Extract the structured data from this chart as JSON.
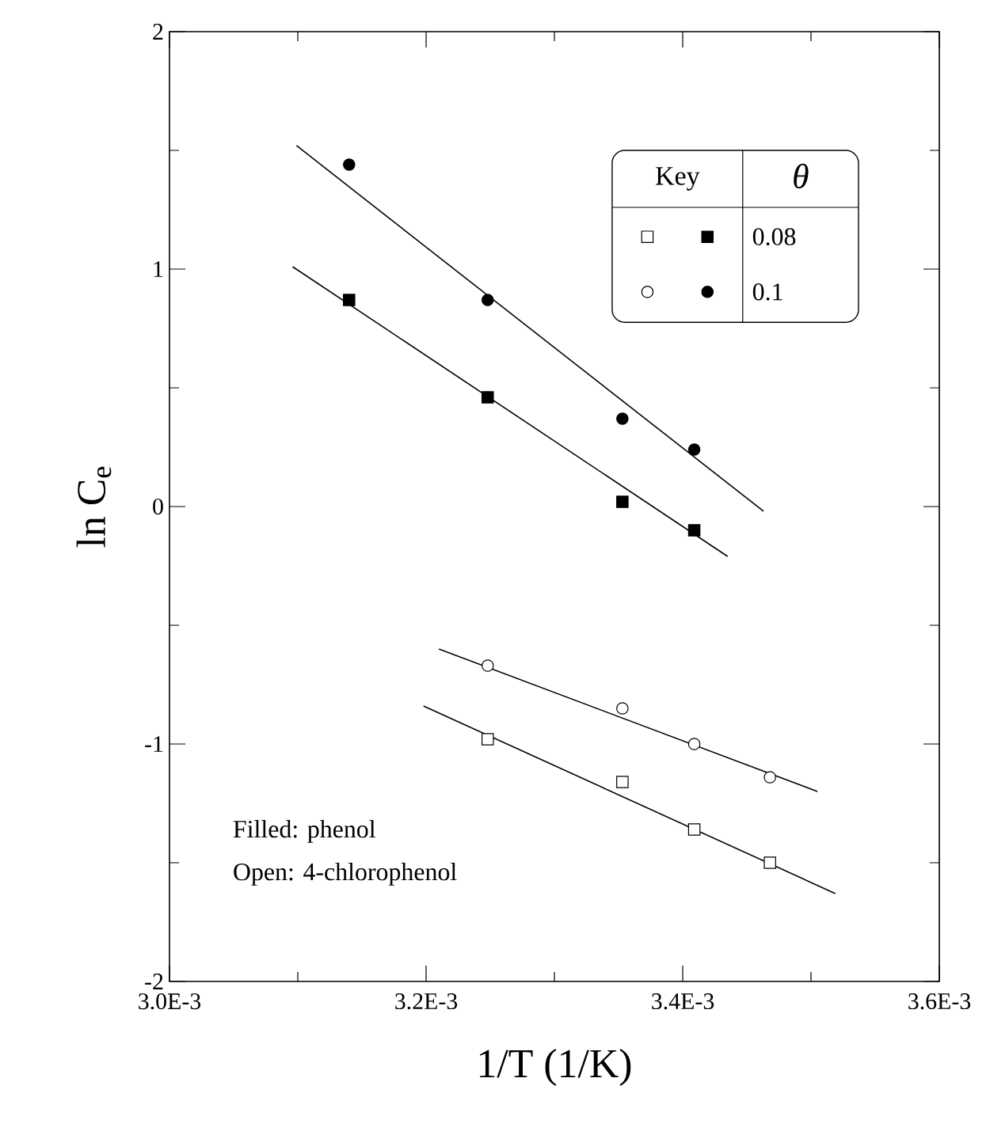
{
  "chart_data": {
    "type": "scatter",
    "xlabel": "1/T (1/K)",
    "ylabel": "ln C$_{e}$",
    "legend_title": "Key",
    "legend": "top right",
    "xlim": [
      0.003,
      0.0036
    ],
    "ylim": [
      -2,
      2
    ],
    "xticks": [
      {
        "value": 0.003,
        "label": "3.0E-3"
      },
      {
        "value": 0.0031,
        "label": null
      },
      {
        "value": 0.0032,
        "label": "3.2E-3"
      },
      {
        "value": 0.0033,
        "label": null
      },
      {
        "value": 0.0034,
        "label": "3.4E-3"
      },
      {
        "value": 0.0035,
        "label": null
      },
      {
        "value": 0.0036,
        "label": "3.6E-3"
      }
    ],
    "yticks": [
      -2,
      {
        "value": -1.5,
        "label": null
      },
      -1,
      {
        "value": -0.5,
        "label": null
      },
      0,
      {
        "value": 0.5,
        "label": null
      },
      1,
      {
        "value": 1.5,
        "label": null
      },
      2
    ],
    "annotations": [
      "θ",
      "Filled: phenol",
      "Open: 4-chlorophenol"
    ],
    "series": [
      {
        "marker": "square",
        "color": "#000000",
        "name": "0.08",
        "x": [
          0.00314,
          0.003248,
          0.003353,
          0.003409
        ],
        "values": [
          0.87,
          0.46,
          0.02,
          -0.1
        ]
      },
      {
        "marker": "circle",
        "color": "#000000",
        "name": "0.1",
        "x": [
          0.00314,
          0.003248,
          0.003353,
          0.003409
        ],
        "values": [
          1.44,
          0.87,
          0.37,
          0.24
        ]
      },
      {
        "marker": "square",
        "color": "#ffffff",
        "x": [
          0.003248,
          0.003353,
          0.003409,
          0.003468
        ],
        "values": [
          -0.98,
          -1.16,
          -1.36,
          -1.5
        ]
      },
      {
        "marker": "circle",
        "color": "#ffffff",
        "x": [
          0.003248,
          0.003353,
          0.003409,
          0.003468
        ],
        "values": [
          -0.67,
          -0.85,
          -1.0,
          -1.14
        ]
      },
      {
        "type": "line",
        "marker": "none",
        "color": "#000000",
        "x": [
          0.003096,
          0.003435
        ],
        "values": [
          1.01,
          -0.21
        ]
      },
      {
        "type": "line",
        "marker": "none",
        "color": "#000000",
        "x": [
          0.003099,
          0.003463
        ],
        "values": [
          1.52,
          -0.02
        ]
      },
      {
        "type": "line",
        "marker": "none",
        "color": "#000000",
        "x": [
          0.003198,
          0.003519
        ],
        "values": [
          -0.84,
          -1.63
        ]
      },
      {
        "type": "line",
        "marker": "none",
        "color": "#000000",
        "x": [
          0.00321,
          0.003505
        ],
        "values": [
          -0.6,
          -1.2
        ]
      }
    ]
  }
}
